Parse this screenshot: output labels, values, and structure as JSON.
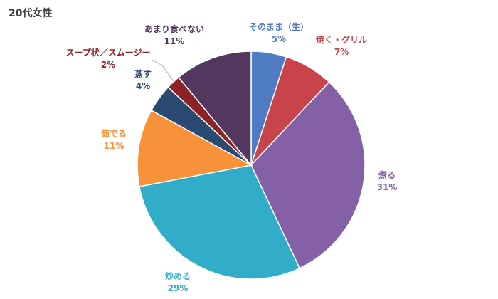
{
  "chart_data": {
    "type": "pie",
    "title": "20代女性",
    "slices": [
      {
        "label": "そのまま（生）",
        "value": 5,
        "value_label": "5%",
        "color": "#4e7bc2"
      },
      {
        "label": "焼く・グリル",
        "value": 7,
        "value_label": "7%",
        "color": "#c8434a"
      },
      {
        "label": "煮る",
        "value": 31,
        "value_label": "31%",
        "color": "#8461a6"
      },
      {
        "label": "炒める",
        "value": 29,
        "value_label": "29%",
        "color": "#31adc9"
      },
      {
        "label": "茹でる",
        "value": 11,
        "value_label": "11%",
        "color": "#f7923a"
      },
      {
        "label": "蒸す",
        "value": 4,
        "value_label": "4%",
        "color": "#2a4a72"
      },
      {
        "label": "スープ状／スムージー",
        "value": 2,
        "value_label": "2%",
        "color": "#8b2326"
      },
      {
        "label": "あまり食べない",
        "value": 11,
        "value_label": "11%",
        "color": "#54375f"
      }
    ],
    "legend": "none",
    "start_angle": "12 o'clock",
    "direction": "clockwise"
  }
}
